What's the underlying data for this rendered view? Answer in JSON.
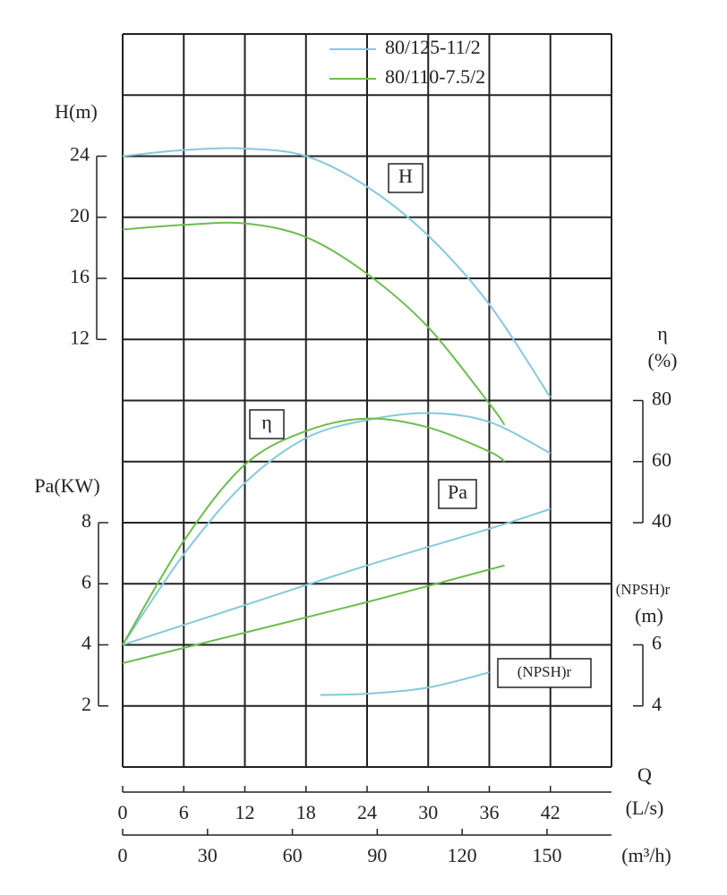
{
  "chart_data": {
    "type": "line",
    "x_label": "Q",
    "x_unit": "(L/s)",
    "xlim": [
      0,
      48
    ],
    "xticks": [
      0,
      6,
      12,
      18,
      24,
      30,
      36,
      42
    ],
    "x2_unit": "(m³/h)",
    "x2lim": [
      0,
      172.8
    ],
    "x2ticks": [
      0,
      30,
      60,
      90,
      120,
      150
    ],
    "grid": true,
    "axes": [
      {
        "label": [
          "H(m)"
        ],
        "side": "left",
        "ylim": [
          -16,
          32
        ],
        "yticks": [
          12,
          16,
          20,
          24
        ]
      },
      {
        "label": [
          "η",
          "(%)"
        ],
        "side": "right",
        "ylim": [
          -40,
          200
        ],
        "yticks": [
          40,
          60,
          80
        ]
      },
      {
        "label": [
          "Pa(KW)"
        ],
        "side": "left",
        "ylim": [
          0,
          24
        ],
        "yticks": [
          2,
          4,
          6,
          8
        ]
      },
      {
        "label": [
          "(NPSH)r",
          "(m)"
        ],
        "side": "right",
        "ylim": [
          2,
          26
        ],
        "yticks": [
          4,
          6
        ]
      }
    ],
    "annotations": [
      "H",
      "η",
      "Pa",
      "(NPSH)r"
    ],
    "series": [
      {
        "name": "80/125-11/2",
        "color": "#86c9dc",
        "curves": [
          {
            "axis": 0,
            "x": [
              0,
              6,
              12,
              18,
              24,
              30,
              36,
              42
            ],
            "values": [
              24,
              24.4,
              24.5,
              24.0,
              22.0,
              18.8,
              14.3,
              8.2
            ]
          },
          {
            "axis": 1,
            "x": [
              0,
              6,
              12,
              18,
              24,
              30,
              36,
              42
            ],
            "values": [
              0,
              29.6,
              53,
              67.7,
              73.6,
              75.9,
              73,
              62.7
            ]
          },
          {
            "axis": 2,
            "x": [
              0,
              12,
              24,
              36,
              42
            ],
            "values": [
              4,
              5.3,
              6.6,
              7.8,
              8.45
            ]
          },
          {
            "axis": 3,
            "x": [
              19.4,
              24,
              30,
              36
            ],
            "values": [
              4.36,
              4.4,
              4.6,
              5.1
            ]
          }
        ]
      },
      {
        "name": "80/110-7.5/2",
        "color": "#6cbd4c",
        "curves": [
          {
            "axis": 0,
            "x": [
              0,
              6,
              12,
              18,
              24,
              30,
              36,
              37.5
            ],
            "values": [
              19.2,
              19.5,
              19.6,
              18.7,
              16.3,
              12.8,
              7.8,
              6.4
            ]
          },
          {
            "axis": 1,
            "x": [
              0,
              6,
              12,
              18,
              24,
              30,
              36,
              37.5
            ],
            "values": [
              0,
              34,
              59,
              70,
              74.1,
              71.2,
              63.3,
              60
            ]
          },
          {
            "axis": 2,
            "x": [
              0,
              12,
              24,
              37.5
            ],
            "values": [
              3.4,
              4.4,
              5.4,
              6.6
            ]
          }
        ]
      }
    ]
  }
}
